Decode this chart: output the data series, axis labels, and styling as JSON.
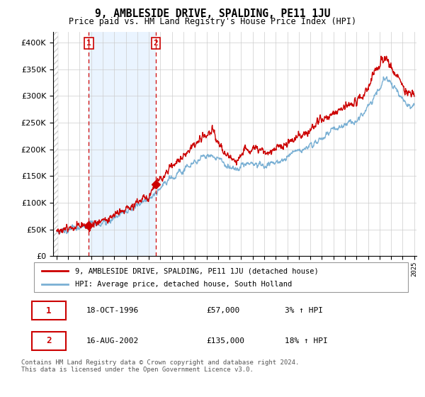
{
  "title": "9, AMBLESIDE DRIVE, SPALDING, PE11 1JU",
  "subtitle": "Price paid vs. HM Land Registry's House Price Index (HPI)",
  "hpi_label": "HPI: Average price, detached house, South Holland",
  "property_label": "9, AMBLESIDE DRIVE, SPALDING, PE11 1JU (detached house)",
  "property_color": "#cc0000",
  "hpi_color": "#7ab0d4",
  "hpi_fill_color": "#ddeeff",
  "sale1_date": 1996.8,
  "sale1_price": 57000,
  "sale1_text": "18-OCT-1996",
  "sale1_pct": "3%",
  "sale2_date": 2002.6,
  "sale2_price": 135000,
  "sale2_text": "16-AUG-2002",
  "sale2_pct": "18%",
  "ylim_max": 420000,
  "xmin": 1994.0,
  "xmax": 2025.0,
  "footer": "Contains HM Land Registry data © Crown copyright and database right 2024.\nThis data is licensed under the Open Government Licence v3.0.",
  "grid_color": "#cccccc",
  "hatch_color": "#cccccc"
}
